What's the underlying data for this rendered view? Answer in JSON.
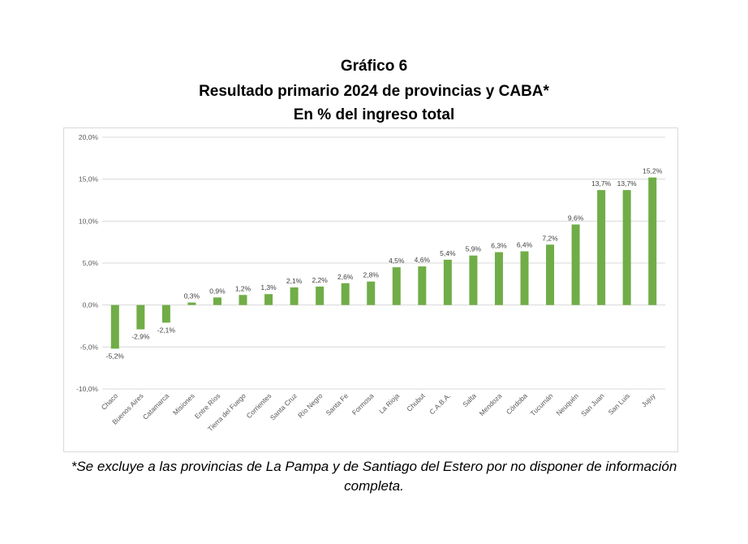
{
  "header": {
    "line1": "Gráfico 6",
    "line2": "Resultado primario 2024 de provincias y CABA*",
    "line3": "En % del ingreso total"
  },
  "footnote": {
    "line1": "*Se excluye a las provincias de La Pampa y de Santiago del Estero por no disponer de información",
    "line2": "completa."
  },
  "colors": {
    "bar": "#70ad47",
    "grid": "#d9d9d9",
    "text": "#595959"
  },
  "chart_data": {
    "type": "bar",
    "title": "Resultado primario 2024 de provincias y CABA*",
    "xlabel": "",
    "ylabel": "En % del ingreso total",
    "ylim": [
      -10,
      20
    ],
    "ytick_step": 5,
    "ytick_labels": [
      "-10,0%",
      "-5,0%",
      "0,0%",
      "5,0%",
      "10,0%",
      "15,0%",
      "20,0%"
    ],
    "grid": true,
    "legend": "none",
    "categories": [
      "Chaco",
      "Buenos Aires",
      "Catamarca",
      "Misiones",
      "Entre Ríos",
      "Tierra del Fuego",
      "Corrientes",
      "Santa Cruz",
      "Río Negro",
      "Santa Fe",
      "Formosa",
      "La Rioja",
      "Chubut",
      "C.A.B.A.",
      "Salta",
      "Mendoza",
      "Córdoba",
      "Tucumán",
      "Neuquén",
      "San Juan",
      "San Luis",
      "Jujuy"
    ],
    "values": [
      -5.2,
      -2.9,
      -2.1,
      0.3,
      0.9,
      1.2,
      1.3,
      2.1,
      2.2,
      2.6,
      2.8,
      4.5,
      4.6,
      5.4,
      5.9,
      6.3,
      6.4,
      7.2,
      9.6,
      13.7,
      13.7,
      15.2
    ],
    "data_labels": [
      "-5,2%",
      "-2,9%",
      "-2,1%",
      "0,3%",
      "0,9%",
      "1,2%",
      "1,3%",
      "2,1%",
      "2,2%",
      "2,6%",
      "2,8%",
      "4,5%",
      "4,6%",
      "5,4%",
      "5,9%",
      "6,3%",
      "6,4%",
      "7,2%",
      "9,6%",
      "13,7%",
      "13,7%",
      "15,2%"
    ]
  }
}
